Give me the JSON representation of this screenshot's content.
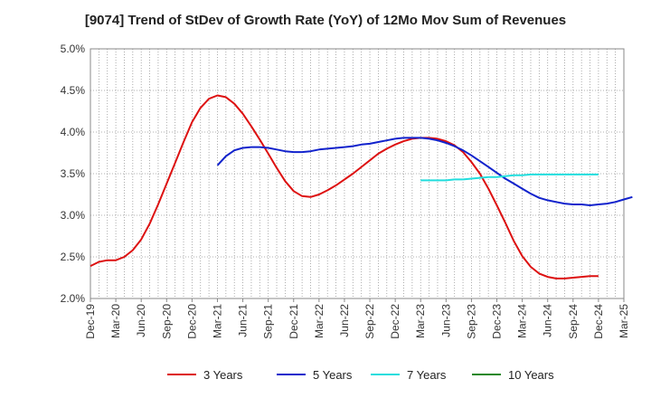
{
  "chart_data": {
    "type": "line",
    "title": "[9074]  Trend of StDev of Growth Rate (YoY) of 12Mo Mov Sum of Revenues",
    "xlabel": "",
    "ylabel": "",
    "ylim": [
      2.0,
      5.0
    ],
    "y_ticks": [
      "2.0%",
      "2.5%",
      "3.0%",
      "3.5%",
      "4.0%",
      "4.5%",
      "5.0%"
    ],
    "y_tick_values": [
      2.0,
      2.5,
      3.0,
      3.5,
      4.0,
      4.5,
      5.0
    ],
    "x_ticks": [
      "Dec-19",
      "Mar-20",
      "Jun-20",
      "Sep-20",
      "Dec-20",
      "Mar-21",
      "Jun-21",
      "Sep-21",
      "Dec-21",
      "Mar-22",
      "Jun-22",
      "Sep-22",
      "Dec-22",
      "Mar-23",
      "Jun-23",
      "Sep-23",
      "Dec-23",
      "Mar-24",
      "Jun-24",
      "Sep-24",
      "Dec-24",
      "Mar-25"
    ],
    "grid": true,
    "legend_position": "bottom",
    "series": [
      {
        "name": "3 Years",
        "color": "#dd1111",
        "start_index": 0,
        "values": [
          2.39,
          2.44,
          2.46,
          2.46,
          2.5,
          2.58,
          2.71,
          2.9,
          3.13,
          3.38,
          3.63,
          3.88,
          4.12,
          4.29,
          4.4,
          4.44,
          4.42,
          4.34,
          4.22,
          4.07,
          3.91,
          3.74,
          3.57,
          3.41,
          3.29,
          3.23,
          3.22,
          3.25,
          3.3,
          3.36,
          3.43,
          3.5,
          3.58,
          3.66,
          3.74,
          3.8,
          3.85,
          3.89,
          3.92,
          3.93,
          3.93,
          3.92,
          3.89,
          3.84,
          3.76,
          3.64,
          3.5,
          3.32,
          3.12,
          2.91,
          2.69,
          2.51,
          2.38,
          2.3,
          2.26,
          2.24,
          2.24,
          2.25,
          2.26,
          2.27,
          2.27
        ]
      },
      {
        "name": "5 Years",
        "color": "#1122cc",
        "start_index": 15,
        "values": [
          3.6,
          3.71,
          3.78,
          3.81,
          3.82,
          3.82,
          3.81,
          3.79,
          3.77,
          3.76,
          3.76,
          3.77,
          3.79,
          3.8,
          3.81,
          3.82,
          3.83,
          3.85,
          3.86,
          3.88,
          3.9,
          3.92,
          3.93,
          3.93,
          3.93,
          3.92,
          3.9,
          3.87,
          3.83,
          3.78,
          3.72,
          3.65,
          3.58,
          3.51,
          3.44,
          3.38,
          3.32,
          3.26,
          3.21,
          3.18,
          3.16,
          3.14,
          3.13,
          3.13,
          3.12,
          3.13,
          3.14,
          3.16,
          3.19,
          3.22
        ]
      },
      {
        "name": "7 Years",
        "color": "#22dddd",
        "start_index": 39,
        "values": [
          3.42,
          3.42,
          3.42,
          3.42,
          3.43,
          3.43,
          3.44,
          3.45,
          3.46,
          3.46,
          3.47,
          3.48,
          3.48,
          3.49,
          3.49,
          3.49,
          3.49,
          3.49,
          3.49,
          3.49,
          3.49,
          3.49
        ]
      },
      {
        "name": "10 Years",
        "color": "#228822",
        "start_index": 0,
        "values": []
      }
    ]
  }
}
